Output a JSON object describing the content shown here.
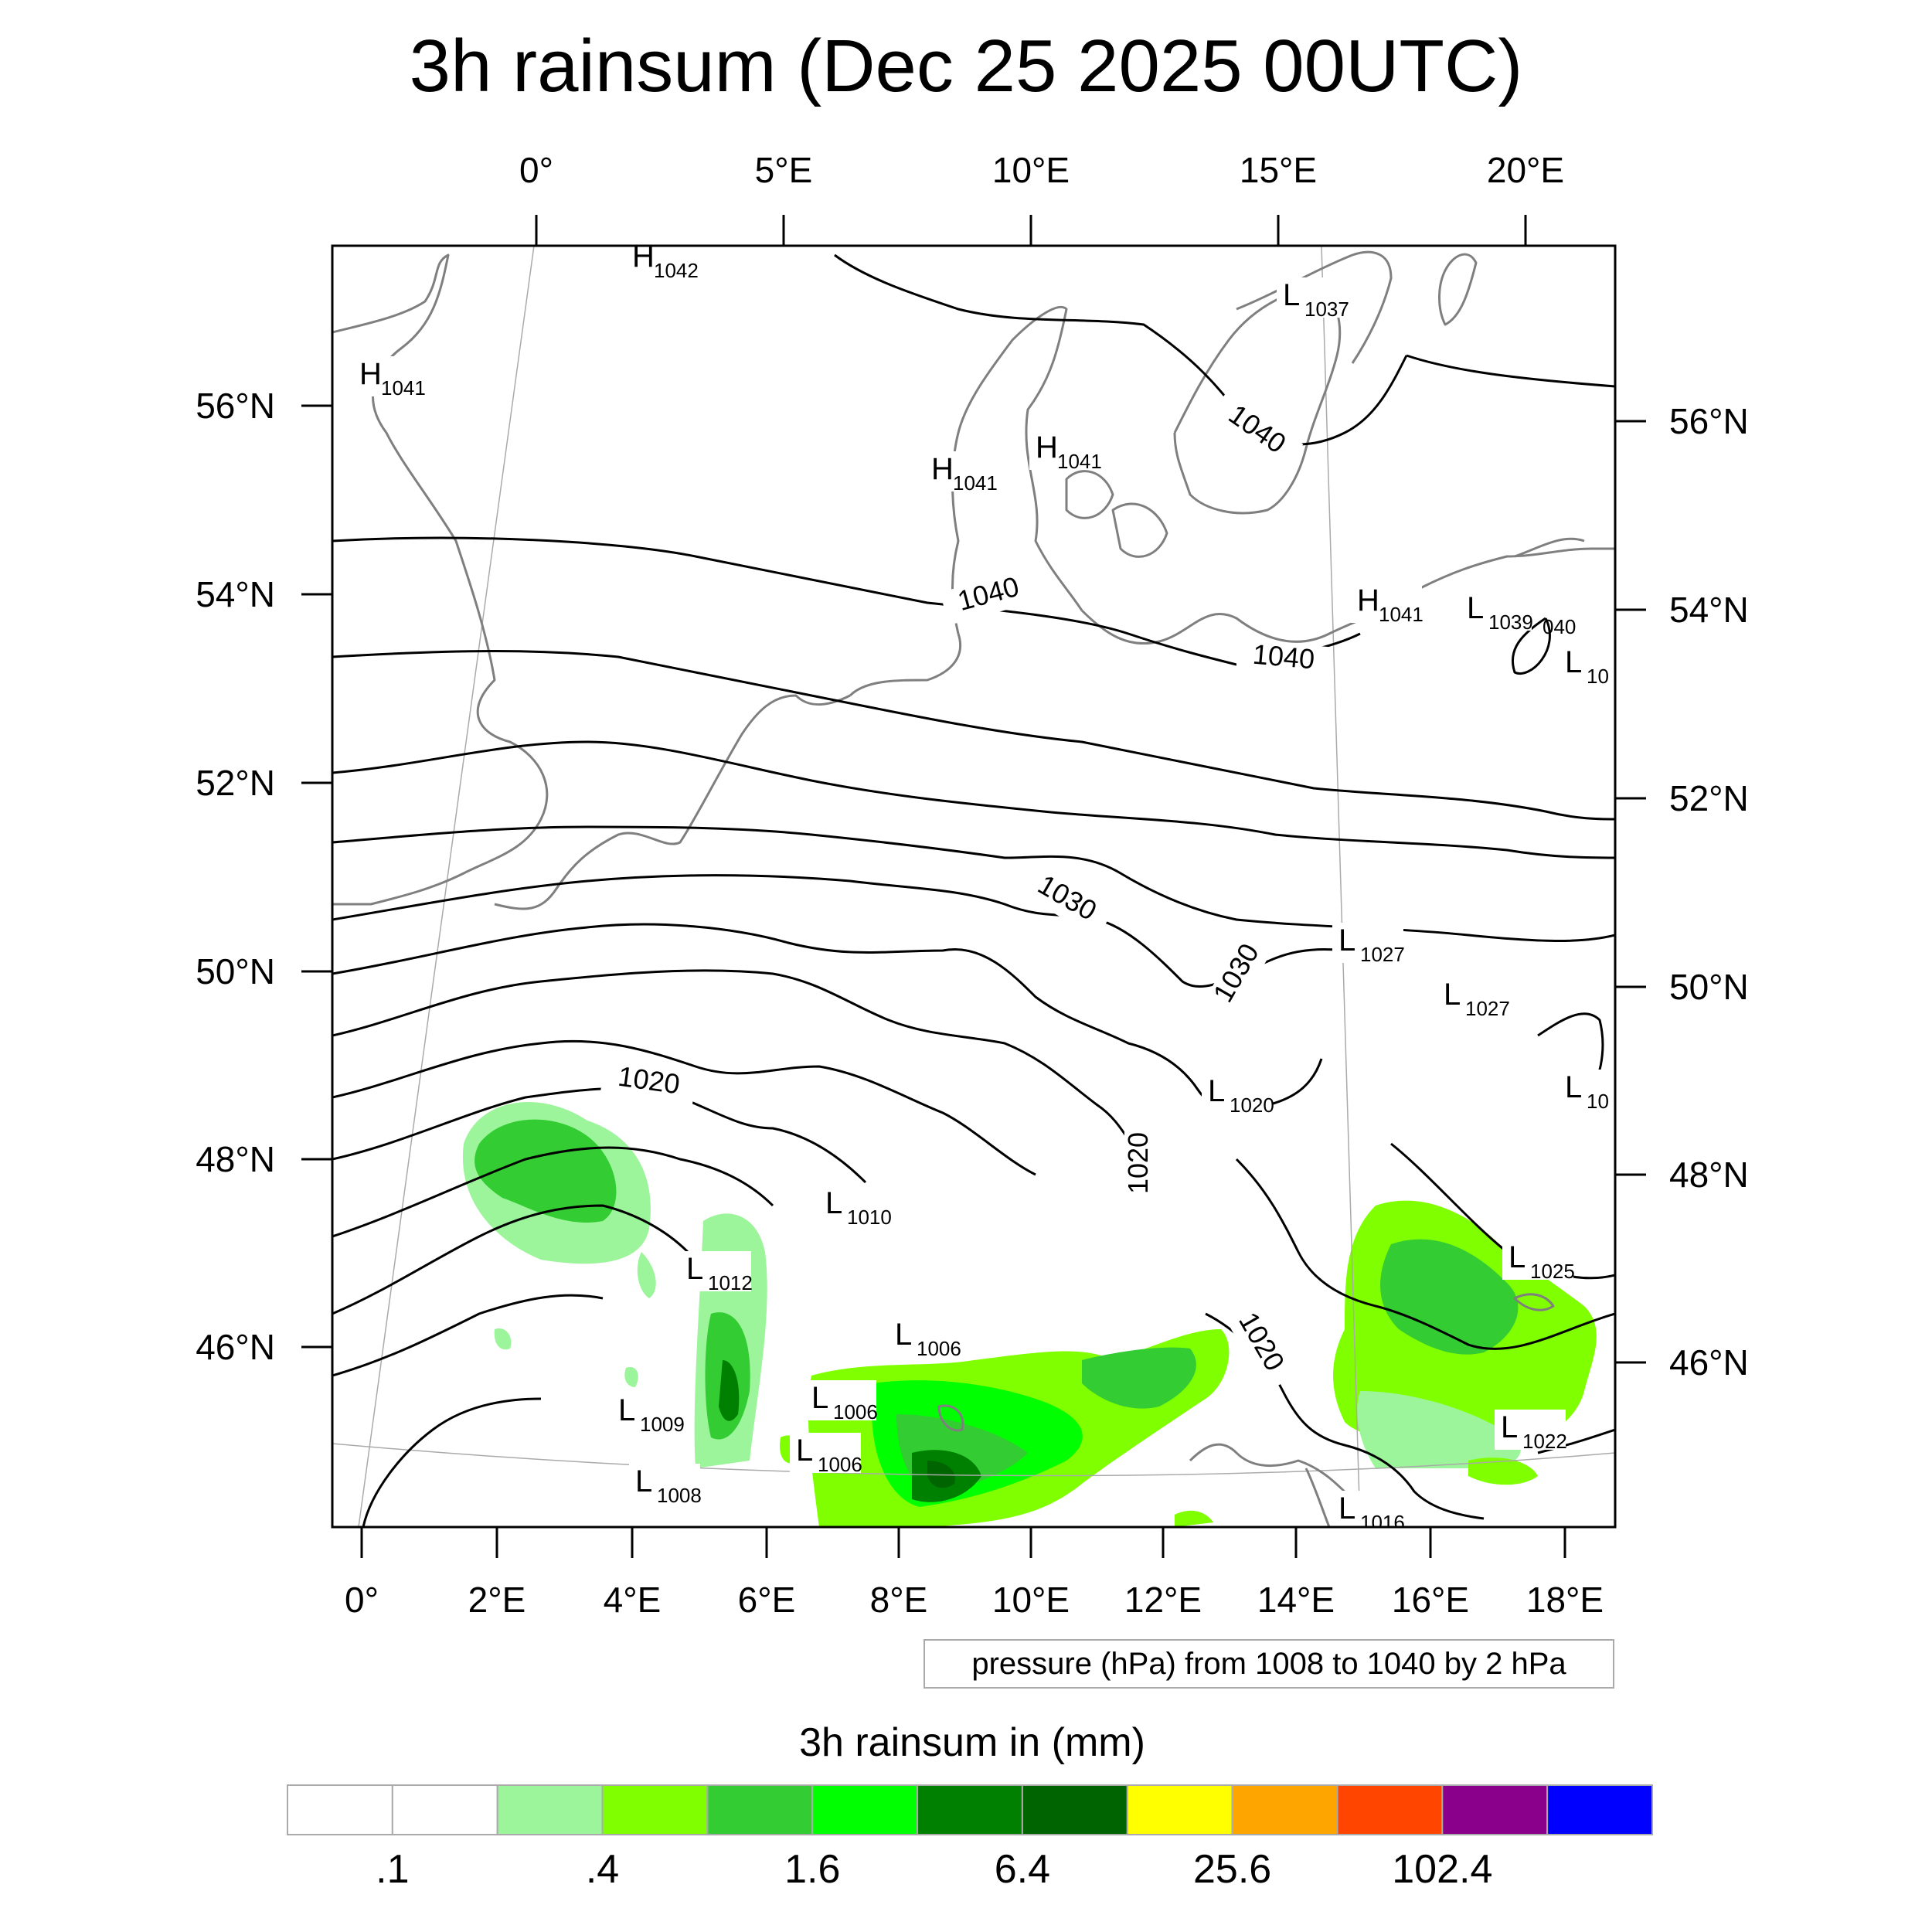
{
  "title": "3h rainsum (Dec 25 2025 00UTC)",
  "top_lon_labels": [
    "0°",
    "5°E",
    "10°E",
    "15°E",
    "20°E"
  ],
  "bottom_lon_labels": [
    "0°",
    "2°E",
    "4°E",
    "6°E",
    "8°E",
    "10°E",
    "12°E",
    "14°E",
    "16°E",
    "18°E"
  ],
  "left_lat_labels": [
    "56°N",
    "54°N",
    "52°N",
    "50°N",
    "48°N",
    "46°N"
  ],
  "right_lat_labels": [
    "56°N",
    "54°N",
    "52°N",
    "50°N",
    "48°N",
    "46°N"
  ],
  "contour_labels": [
    "1040",
    "1040",
    "1040",
    "1030",
    "1030",
    "1020",
    "1020",
    "1020"
  ],
  "pressure_centers": [
    {
      "type": "H",
      "value": "1042"
    },
    {
      "type": "H",
      "value": "1041"
    },
    {
      "type": "L",
      "value": "1037"
    },
    {
      "type": "H",
      "value": "1041"
    },
    {
      "type": "H",
      "value": "1041"
    },
    {
      "type": "H",
      "value": "1041"
    },
    {
      "type": "L",
      "value": "1039"
    },
    {
      "type": "L",
      "value": "10"
    },
    {
      "type": "L",
      "value": "1027"
    },
    {
      "type": "L",
      "value": "1027"
    },
    {
      "type": "L",
      "value": "1020"
    },
    {
      "type": "L",
      "value": "10"
    },
    {
      "type": "L",
      "value": "1010"
    },
    {
      "type": "L",
      "value": "1012"
    },
    {
      "type": "L",
      "value": "1006"
    },
    {
      "type": "L",
      "value": "1006"
    },
    {
      "type": "L",
      "value": "1006"
    },
    {
      "type": "L",
      "value": "1009"
    },
    {
      "type": "L",
      "value": "1008"
    },
    {
      "type": "L",
      "value": "1025"
    },
    {
      "type": "L",
      "value": "1022"
    },
    {
      "type": "L",
      "value": "1016"
    }
  ],
  "contour_label_partial": "040",
  "info_box": "pressure (hPa) from 1008 to 1040 by 2 hPa",
  "colorbar": {
    "title": "3h rainsum in (mm)",
    "colors": [
      "#ffffff",
      "#ffffff",
      "#9cf59a",
      "#7fff00",
      "#33cc33",
      "#00ff00",
      "#008000",
      "#006400",
      "#ffff00",
      "#ffa500",
      "#ff4500",
      "#8b008b",
      "#0000ff"
    ],
    "labels": [
      ".1",
      ".4",
      "1.6",
      "6.4",
      "25.6",
      "102.4"
    ]
  },
  "colors": {
    "coast": "#7f7f7f",
    "isobar": "#000000",
    "grid": "#aaaaaa"
  }
}
